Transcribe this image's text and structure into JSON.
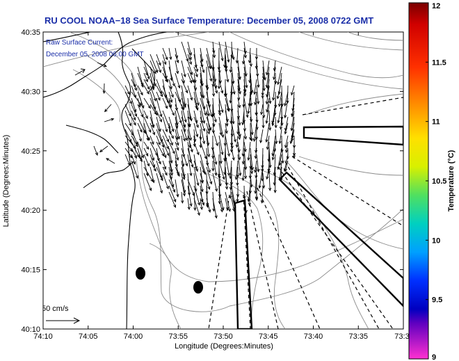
{
  "title": "RU COOL  NOAA−18  Sea Surface Temperature:  December 05, 2008 0722 GMT",
  "current_label_1": "Raw Surface Current:",
  "current_label_2": "December 05, 2008 06:00 GMT",
  "scale_label": "50 cm/s",
  "x_axis_label": "Longitude (Degrees:Minutes)",
  "y_axis_label": "Latitude (Degrees:Minutes)",
  "x_ticks": [
    "74:10",
    "74:05",
    "74:00",
    "73:55",
    "73:50",
    "73:45",
    "73:40",
    "73:35",
    "73:3"
  ],
  "y_ticks": [
    "40:35",
    "40:30",
    "40:25",
    "40:20",
    "40:15",
    "40:10"
  ],
  "colorbar": {
    "label": "Temperature (°C)",
    "ticks": [
      "12",
      "11.5",
      "11",
      "10.5",
      "10",
      "9.5",
      "9"
    ],
    "min": 9,
    "max": 12
  },
  "colors": {
    "title": "#1a2ea8",
    "coast": "#000000",
    "bathymetry": "#999999"
  }
}
